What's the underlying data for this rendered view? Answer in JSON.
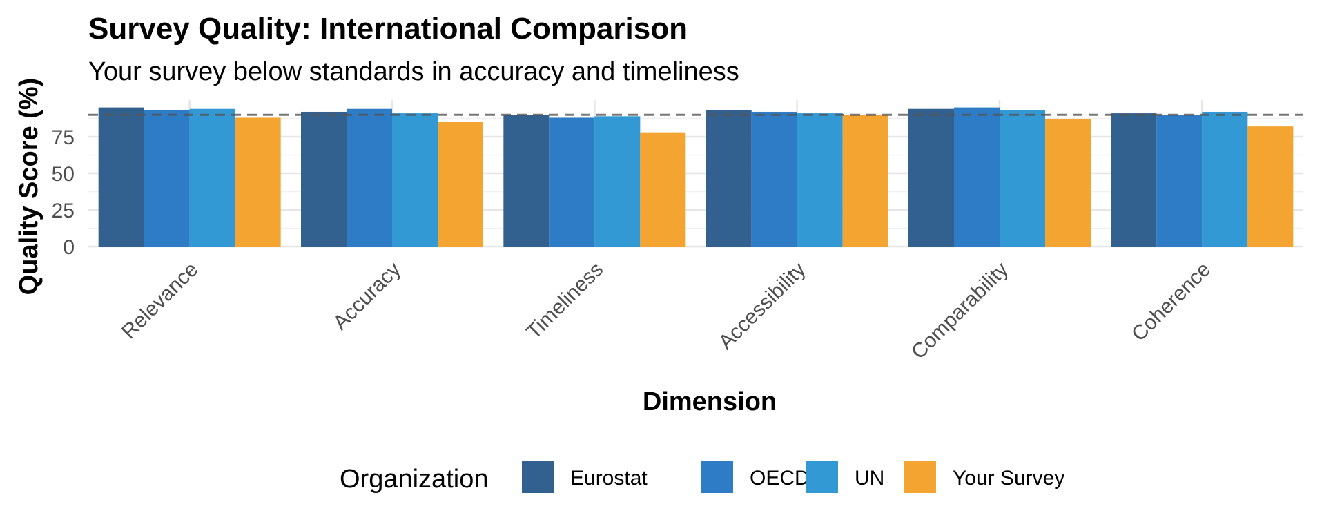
{
  "chart_data": {
    "type": "bar",
    "title": "Survey Quality: International Comparison",
    "subtitle": "Your survey below standards in accuracy and timeliness",
    "xlabel": "Dimension",
    "ylabel": "Quality Score (%)",
    "ylim": [
      0,
      100
    ],
    "yticks": [
      "0",
      "25",
      "50",
      "75"
    ],
    "reference_line": 90,
    "grid": true,
    "legend": {
      "title": "Organization",
      "position": "bottom"
    },
    "categories": [
      "Relevance",
      "Accuracy",
      "Timeliness",
      "Accessibility",
      "Comparability",
      "Coherence"
    ],
    "series": [
      {
        "name": "Eurostat",
        "color": "#33618F",
        "values": [
          95,
          92,
          90,
          93,
          94,
          91
        ]
      },
      {
        "name": "OECD",
        "color": "#2E7BC6",
        "values": [
          93,
          94,
          88,
          92,
          95,
          90
        ]
      },
      {
        "name": "UN",
        "color": "#3399D4",
        "values": [
          94,
          91,
          89,
          91,
          93,
          92
        ]
      },
      {
        "name": "Your Survey",
        "color": "#F4A431",
        "values": [
          88,
          85,
          78,
          90,
          87,
          82
        ]
      }
    ]
  }
}
